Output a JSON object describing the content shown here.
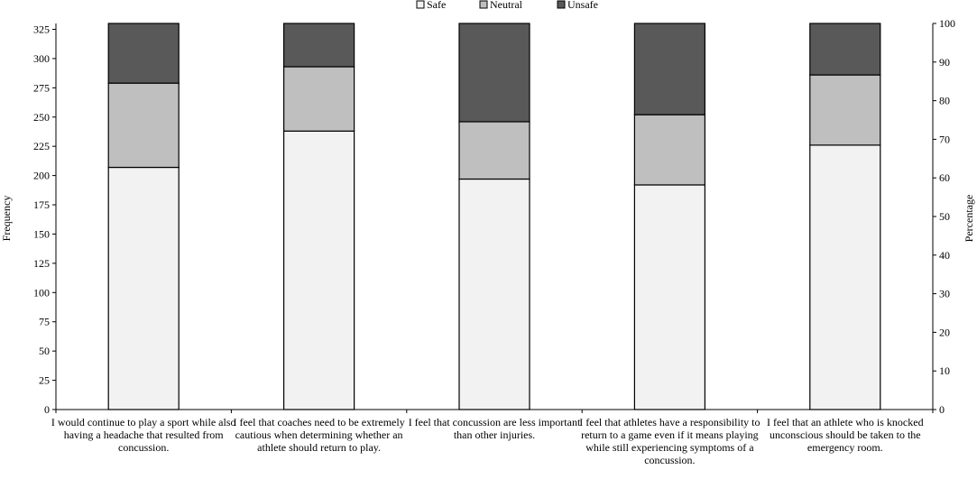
{
  "chart_data": {
    "type": "bar",
    "stacked": true,
    "categories": [
      "I would continue to play a sport while also having a headache that resulted from concussion.",
      "I feel that coaches need to be extremely cautious when determining whether an athlete should return to play.",
      "I feel that concussion are less important than other injuries.",
      "I feel that athletes have a responsibility to return to a game even if it means playing while still experiencing symptoms of a concussion.",
      "I feel that an athlete who is knocked unconscious should be taken to the emergency room."
    ],
    "series": [
      {
        "name": "Safe",
        "color": "#f2f2f2",
        "values": [
          207,
          238,
          197,
          192,
          226
        ]
      },
      {
        "name": "Neutral",
        "color": "#bfbfbf",
        "values": [
          72,
          55,
          49,
          60,
          60
        ]
      },
      {
        "name": "Unsafe",
        "color": "#595959",
        "values": [
          51,
          37,
          84,
          78,
          44
        ]
      }
    ],
    "ylabel": "Frequency",
    "y2label": "Percentage",
    "ylim": [
      0,
      330
    ],
    "yticks": [
      "0",
      "25",
      "50",
      "75",
      "100",
      "125",
      "150",
      "175",
      "200",
      "225",
      "250",
      "275",
      "300",
      "325"
    ],
    "y2lim": [
      0,
      100
    ],
    "y2ticks": [
      "0",
      "10",
      "20",
      "30",
      "40",
      "50",
      "60",
      "70",
      "80",
      "90",
      "100"
    ],
    "legend_position": "top-center",
    "grid": false
  }
}
